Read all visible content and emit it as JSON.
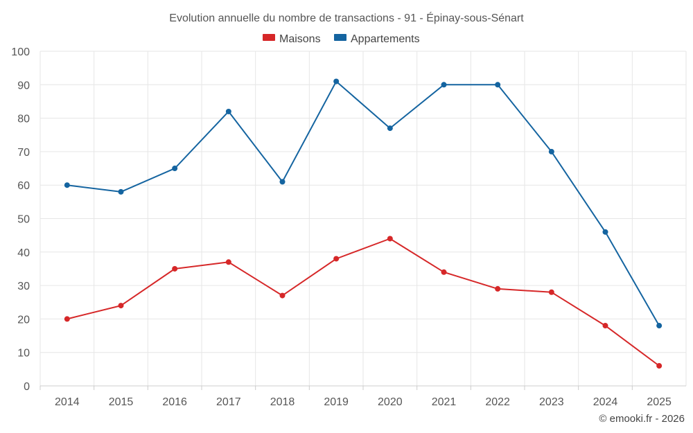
{
  "chart_data": {
    "type": "line",
    "title": "Evolution annuelle du nombre de transactions - 91 - Épinay-sous-Sénart",
    "categories": [
      "2014",
      "2015",
      "2016",
      "2017",
      "2018",
      "2019",
      "2020",
      "2021",
      "2022",
      "2023",
      "2024",
      "2025"
    ],
    "series": [
      {
        "name": "Maisons",
        "color": "#d62728",
        "values": [
          20,
          24,
          35,
          37,
          27,
          38,
          44,
          34,
          29,
          28,
          18,
          6
        ]
      },
      {
        "name": "Appartements",
        "color": "#1464a0",
        "values": [
          60,
          58,
          65,
          82,
          61,
          91,
          77,
          90,
          90,
          70,
          46,
          18
        ]
      }
    ],
    "ylim": [
      0,
      100
    ],
    "yticks": [
      0,
      10,
      20,
      30,
      40,
      50,
      60,
      70,
      80,
      90,
      100
    ],
    "xlabel": "",
    "ylabel": "",
    "grid": true,
    "legend_position": "top-center"
  },
  "credit": "© emooki.fr - 2026"
}
